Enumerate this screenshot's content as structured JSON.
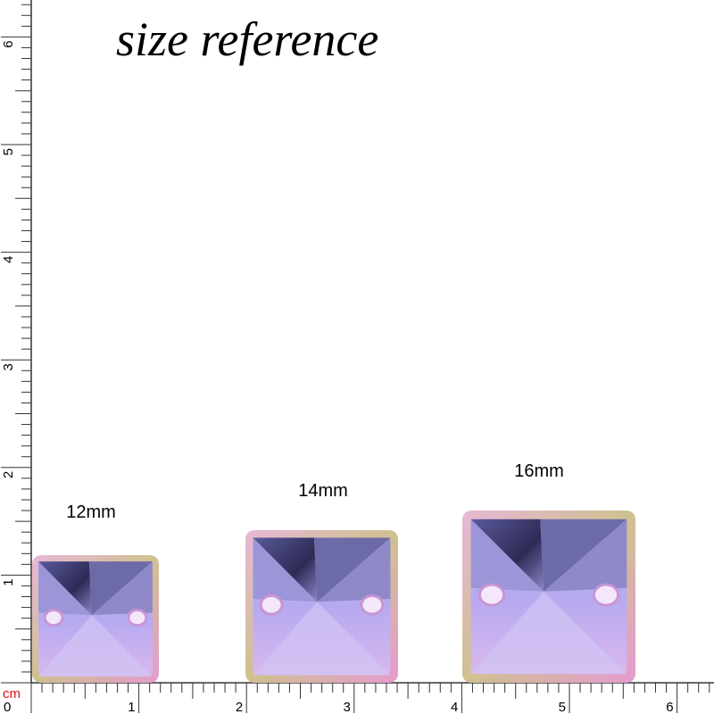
{
  "title": "size reference",
  "ruler": {
    "unit": "cm",
    "x_labels": [
      0,
      1,
      2,
      3,
      4,
      5,
      6
    ],
    "y_labels": [
      1,
      2,
      3,
      4,
      5,
      6
    ]
  },
  "items": [
    {
      "label": "12mm"
    },
    {
      "label": "14mm"
    },
    {
      "label": "16mm"
    }
  ]
}
